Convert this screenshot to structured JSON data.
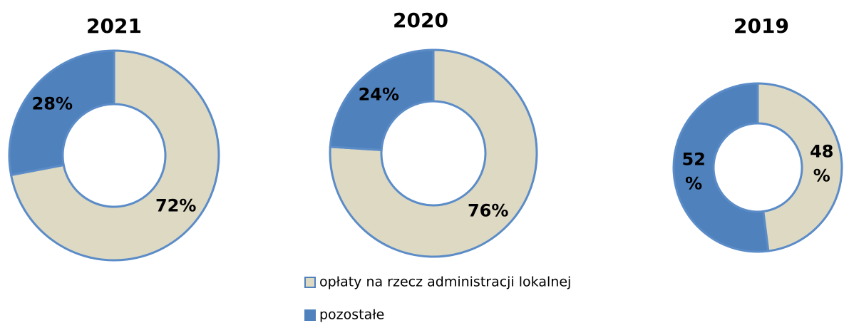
{
  "chart_data": [
    {
      "type": "donut",
      "title": "2021",
      "categories": [
        "opłaty na rzecz administracji lokalnej",
        "pozostałe"
      ],
      "colors": [
        "#ddd9c3",
        "#4f81bd"
      ],
      "values": [
        72,
        28
      ],
      "value_labels": [
        "72%",
        "28%"
      ]
    },
    {
      "type": "donut",
      "title": "2020",
      "categories": [
        "opłaty na rzecz administracji lokalnej",
        "pozostałe"
      ],
      "colors": [
        "#ddd9c3",
        "#4f81bd"
      ],
      "values": [
        76,
        24
      ],
      "value_labels": [
        "76%",
        "24%"
      ]
    },
    {
      "type": "donut",
      "title": "2019",
      "categories": [
        "opłaty na rzecz administracji lokalnej",
        "pozostałe"
      ],
      "colors": [
        "#ddd9c3",
        "#4f81bd"
      ],
      "values": [
        48,
        52
      ],
      "value_labels": [
        "48%",
        "52%"
      ]
    }
  ]
}
